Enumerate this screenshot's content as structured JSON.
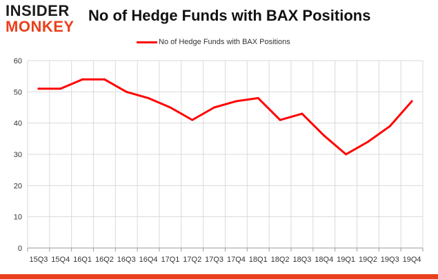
{
  "logo": {
    "line1": "INSIDER",
    "line2": "MONKEY"
  },
  "colors": {
    "series": "#ff0000",
    "brand_orange": "#e8401c",
    "grid": "#d9d9d9",
    "axis": "#999999"
  },
  "chart_data": {
    "type": "line",
    "title": "No of Hedge Funds with BAX Positions",
    "xlabel": "",
    "ylabel": "",
    "categories": [
      "15Q3",
      "15Q4",
      "16Q1",
      "16Q2",
      "16Q3",
      "16Q4",
      "17Q1",
      "17Q2",
      "17Q3",
      "17Q4",
      "18Q1",
      "18Q2",
      "18Q3",
      "18Q4",
      "19Q1",
      "19Q2",
      "19Q3",
      "19Q4"
    ],
    "series": [
      {
        "name": "No of Hedge Funds with BAX Positions",
        "values": [
          51,
          51,
          54,
          54,
          50,
          48,
          45,
          41,
          45,
          47,
          48,
          41,
          43,
          36,
          30,
          34,
          39,
          47
        ]
      }
    ],
    "ylim": [
      0,
      60
    ],
    "yticks": [
      0,
      10,
      20,
      30,
      40,
      50,
      60
    ],
    "grid": true,
    "legend_position": "top-center"
  }
}
